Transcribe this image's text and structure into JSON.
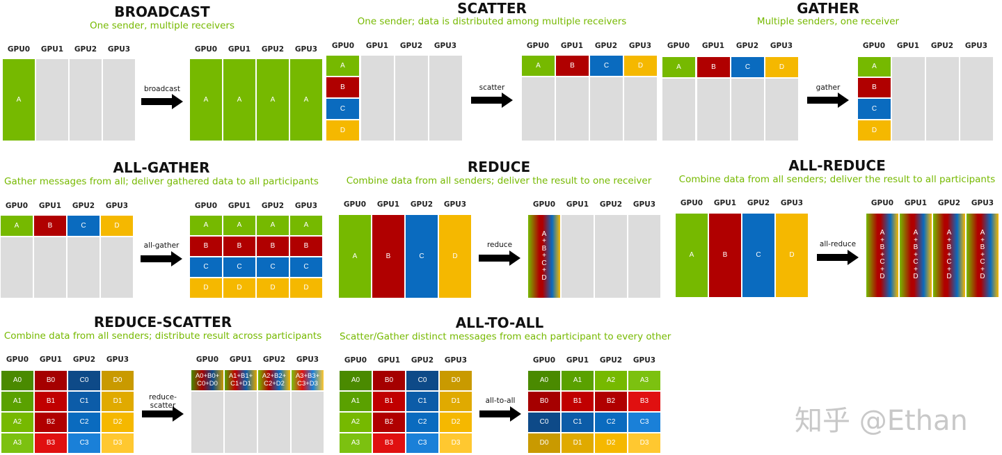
{
  "gpus": [
    "GPU0",
    "GPU1",
    "GPU2",
    "GPU3"
  ],
  "broadcast": {
    "title": "BROADCAST",
    "subtitle": "One sender, multiple receivers",
    "op": "broadcast",
    "in": "A",
    "out": [
      "A",
      "A",
      "A",
      "A"
    ]
  },
  "scatter": {
    "title": "SCATTER",
    "subtitle": "One sender; data is distributed among multiple receivers",
    "op": "scatter",
    "in": [
      "A",
      "B",
      "C",
      "D"
    ],
    "out": [
      "A",
      "B",
      "C",
      "D"
    ]
  },
  "gather": {
    "title": "GATHER",
    "subtitle": "Multiple senders, one receiver",
    "op": "gather",
    "in": [
      "A",
      "B",
      "C",
      "D"
    ],
    "out": [
      "A",
      "B",
      "C",
      "D"
    ]
  },
  "allgather": {
    "title": "ALL-GATHER",
    "subtitle": "Gather messages from all; deliver gathered data to all participants",
    "op": "all-gather",
    "in": [
      "A",
      "B",
      "C",
      "D"
    ],
    "out": [
      "A",
      "B",
      "C",
      "D"
    ]
  },
  "reduce": {
    "title": "REDUCE",
    "subtitle": "Combine data from all senders; deliver the result to one receiver",
    "op": "reduce",
    "in": [
      "A",
      "B",
      "C",
      "D"
    ],
    "out": [
      "A",
      "+",
      "B",
      "+",
      "C",
      "+",
      "D"
    ]
  },
  "allreduce": {
    "title": "ALL-REDUCE",
    "subtitle": "Combine data from all senders; deliver the result to all participants",
    "op": "all-reduce",
    "in": [
      "A",
      "B",
      "C",
      "D"
    ],
    "out": [
      "A",
      "+",
      "B",
      "+",
      "C",
      "+",
      "D"
    ]
  },
  "reducescatter": {
    "title": "REDUCE-SCATTER",
    "subtitle": "Combine data from all senders; distribute result across participants",
    "op1": "reduce-",
    "op2": "scatter",
    "in": [
      [
        "A0",
        "B0",
        "C0",
        "D0"
      ],
      [
        "A1",
        "B1",
        "C1",
        "D1"
      ],
      [
        "A2",
        "B2",
        "C2",
        "D2"
      ],
      [
        "A3",
        "B3",
        "C3",
        "D3"
      ]
    ],
    "out": [
      [
        "A0+B0+",
        "C0+D0"
      ],
      [
        "A1+B1+",
        "C1+D1"
      ],
      [
        "A2+B2+",
        "C2+D2"
      ],
      [
        "A3+B3+",
        "C3+D3"
      ]
    ]
  },
  "alltoall": {
    "title": "ALL-TO-ALL",
    "subtitle": "Scatter/Gather distinct messages from each participant to every other",
    "op": "all-to-all",
    "in": [
      [
        "A0",
        "B0",
        "C0",
        "D0"
      ],
      [
        "A1",
        "B1",
        "C1",
        "D1"
      ],
      [
        "A2",
        "B2",
        "C2",
        "D2"
      ],
      [
        "A3",
        "B3",
        "C3",
        "D3"
      ]
    ],
    "out": [
      [
        "A0",
        "A1",
        "A2",
        "A3"
      ],
      [
        "B0",
        "B1",
        "B2",
        "B3"
      ],
      [
        "C0",
        "C1",
        "C2",
        "C3"
      ],
      [
        "D0",
        "D1",
        "D2",
        "D3"
      ]
    ]
  },
  "watermark": "知乎 @Ethan"
}
